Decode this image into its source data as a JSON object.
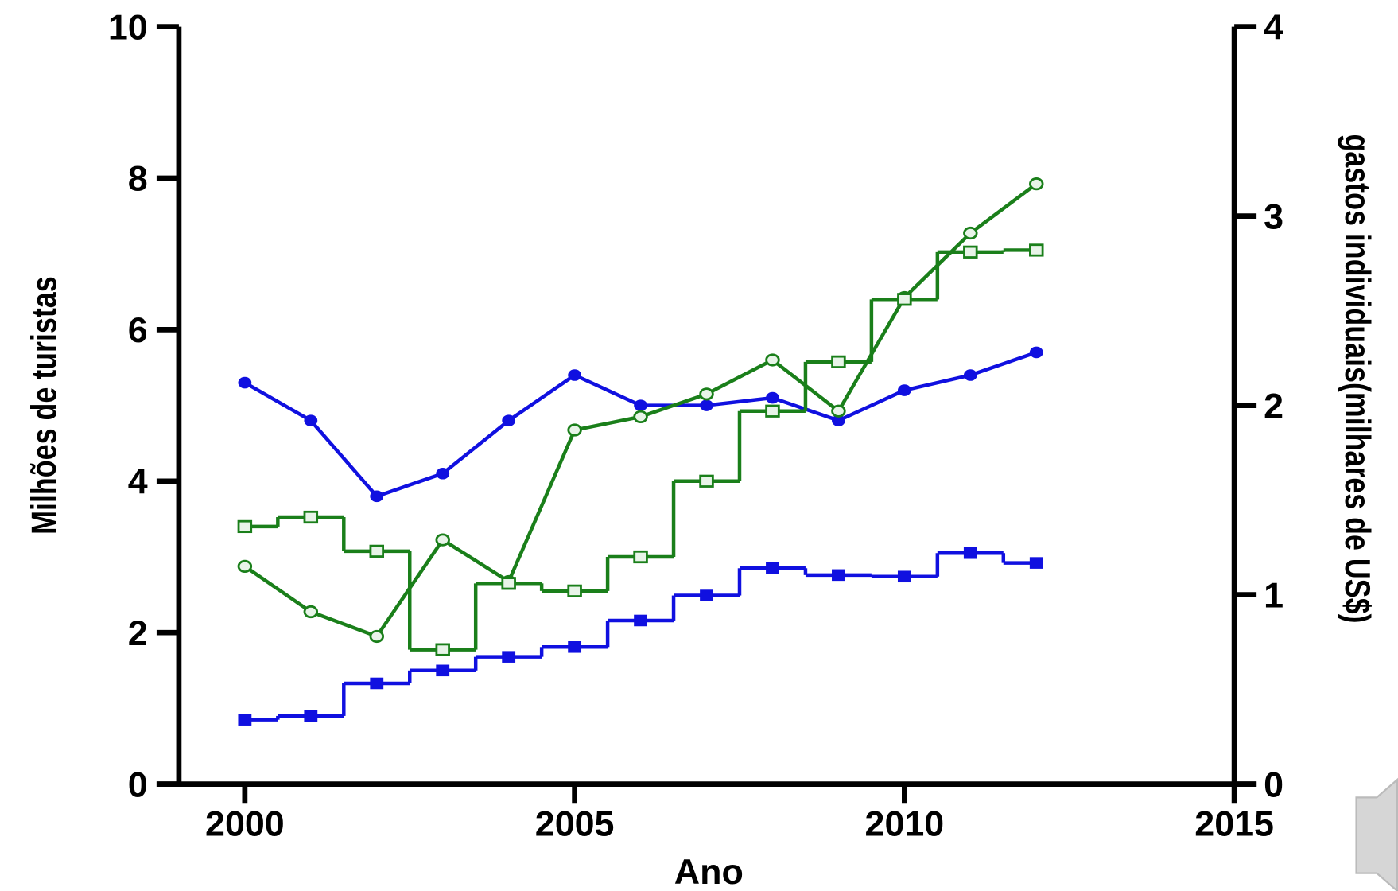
{
  "chart_data": {
    "type": "line",
    "x_label": "Ano",
    "y_label": "Milhões de turistas",
    "y2_label": "gastos individuais(milhares de US$)",
    "xlim": [
      1999,
      2015
    ],
    "xticks": [
      2000,
      2005,
      2010,
      2015
    ],
    "ylim": [
      0,
      10
    ],
    "yticks": [
      0,
      2,
      4,
      6,
      8,
      10
    ],
    "y2lim": [
      0,
      4
    ],
    "y2ticks": [
      0,
      1,
      2,
      3,
      4
    ],
    "grid": false,
    "x": [
      2000,
      2001,
      2002,
      2003,
      2004,
      2005,
      2006,
      2007,
      2008,
      2009,
      2010,
      2011,
      2012
    ],
    "series": [
      {
        "color": "#1010e0",
        "marker": "circle",
        "filled": true,
        "drawstyle": "default",
        "axis": "y",
        "values": [
          5.3,
          4.8,
          3.8,
          4.1,
          4.8,
          5.4,
          5.0,
          5.0,
          5.1,
          4.8,
          5.2,
          5.4,
          5.7
        ]
      },
      {
        "color": "#1010e0",
        "marker": "square",
        "filled": true,
        "drawstyle": "steps-mid",
        "axis": "y",
        "values": [
          0.85,
          0.9,
          1.33,
          1.5,
          1.68,
          1.81,
          2.16,
          2.49,
          2.85,
          2.76,
          2.74,
          3.05,
          2.92
        ]
      },
      {
        "color": "#1a7f1a",
        "marker": "circle",
        "filled": false,
        "drawstyle": "default",
        "axis": "y2",
        "values": [
          1.15,
          0.91,
          0.78,
          1.29,
          1.07,
          1.87,
          1.94,
          2.06,
          2.24,
          1.97,
          2.57,
          2.91,
          3.17
        ]
      },
      {
        "color": "#1a7f1a",
        "marker": "square",
        "filled": false,
        "drawstyle": "steps-mid",
        "axis": "y2",
        "values": [
          1.36,
          1.41,
          1.23,
          0.71,
          1.06,
          1.02,
          1.2,
          1.6,
          1.97,
          2.23,
          2.56,
          2.81,
          2.82
        ]
      }
    ]
  }
}
